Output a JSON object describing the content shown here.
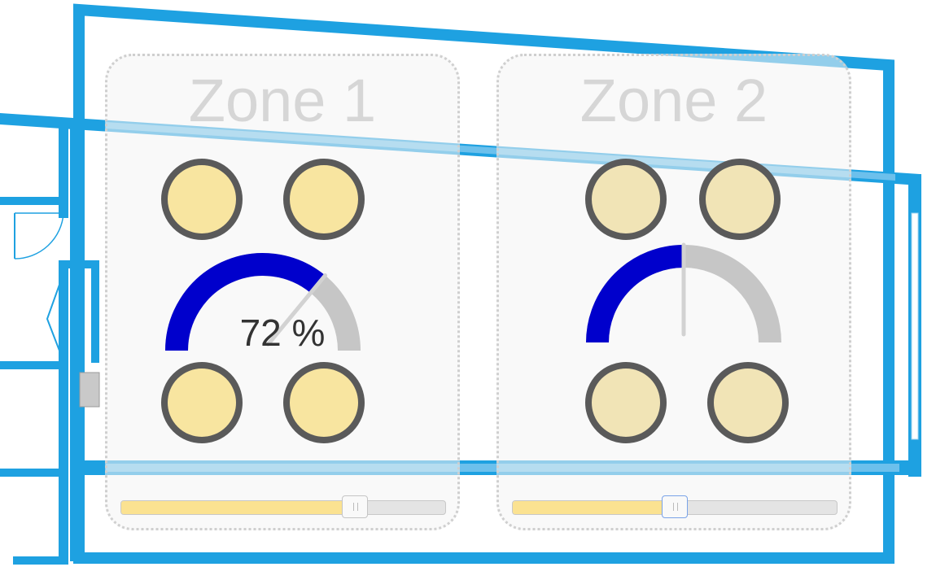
{
  "colors": {
    "wall": "#1ea1e1",
    "window": "#48b0e6",
    "gauge_fill": "#0000cc",
    "gauge_track": "#c6c6c6",
    "zone1_lamp": "#f8e5a0",
    "zone2_lamp": "#f1e4b6",
    "lamp_ring": "#5a5a5a"
  },
  "zones": [
    {
      "title": "Zone 1",
      "gauge_text": "72 %",
      "level_percent": 72,
      "lamps": [
        {
          "icon": "lamp-icon"
        },
        {
          "icon": "lamp-icon"
        },
        {
          "icon": "lamp-icon"
        },
        {
          "icon": "lamp-icon"
        }
      ]
    },
    {
      "title": "Zone 2",
      "gauge_text": "",
      "level_percent": 50,
      "lamps": [
        {
          "icon": "lamp-icon"
        },
        {
          "icon": "lamp-icon"
        },
        {
          "icon": "lamp-icon"
        },
        {
          "icon": "lamp-icon"
        }
      ]
    }
  ]
}
